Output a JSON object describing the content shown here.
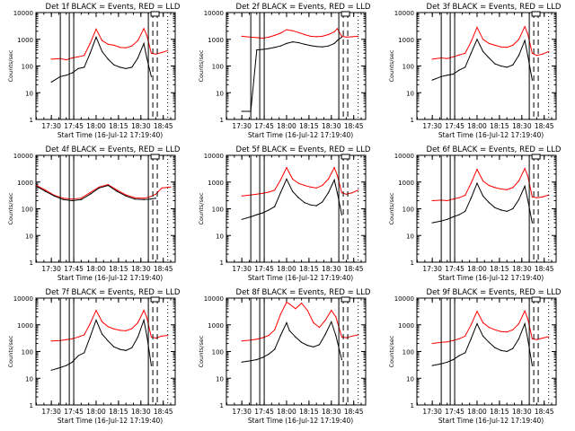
{
  "chart_data": {
    "type": "line",
    "yscale": "log",
    "ylim": [
      1,
      10000
    ],
    "ylabel": "Counts/sec",
    "xlabel": "Start Time (16-Jul-12 17:19:40)",
    "x_tick_labels": [
      "17:30",
      "17:45",
      "18:00",
      "18:15",
      "18:30",
      "18:45"
    ],
    "y_tick_labels": [
      "1",
      "10",
      "100",
      "1000",
      "10000"
    ],
    "y_tick_values": [
      1,
      10,
      100,
      1000,
      10000
    ],
    "colors": {
      "events": "#000000",
      "lld": "#ff0000"
    },
    "panels": [
      {
        "title": "Det 1f BLACK = Events, RED = LLD",
        "x": [
          "17:30",
          "17:36",
          "17:40",
          "17:44",
          "17:48",
          "17:52",
          "17:56",
          "18:00",
          "18:04",
          "18:08",
          "18:12",
          "18:16",
          "18:20",
          "18:24",
          "18:28",
          "18:32",
          "18:34",
          "18:37",
          "18:40",
          "18:44",
          "18:48"
        ],
        "series": [
          {
            "name": "BLACK = Events",
            "values": [
              25,
              40,
              45,
              55,
              80,
              90,
              300,
              1200,
              350,
              180,
              110,
              90,
              80,
              90,
              200,
              700,
              200,
              40,
              null,
              null,
              null
            ]
          },
          {
            "name": "RED = LLD",
            "values": [
              180,
              190,
              170,
              200,
              220,
              250,
              700,
              2400,
              900,
              650,
              600,
              500,
              480,
              560,
              900,
              2500,
              1400,
              300,
              280,
              320,
              380
            ]
          }
        ]
      },
      {
        "title": "Det 2f BLACK = Events, RED = LLD",
        "x": [
          "17:30",
          "17:36",
          "17:40",
          "17:44",
          "17:48",
          "17:52",
          "17:56",
          "18:00",
          "18:04",
          "18:08",
          "18:12",
          "18:16",
          "18:20",
          "18:24",
          "18:28",
          "18:32",
          "18:34",
          "18:37",
          "18:40",
          "18:44",
          "18:48"
        ],
        "series": [
          {
            "name": "BLACK = Events",
            "values": [
              2,
              2,
              400,
              420,
              450,
              500,
              560,
              700,
              800,
              750,
              650,
              580,
              540,
              520,
              560,
              700,
              900,
              1200,
              null,
              null,
              null
            ]
          },
          {
            "name": "RED = LLD",
            "values": [
              1300,
              1200,
              1150,
              1100,
              1200,
              1400,
              1700,
              2300,
              2100,
              1800,
              1500,
              1300,
              1250,
              1300,
              1500,
              1900,
              2500,
              1300,
              1200,
              1250,
              1300
            ]
          }
        ]
      },
      {
        "title": "Det 3f BLACK = Events, RED = LLD",
        "x": [
          "17:30",
          "17:36",
          "17:40",
          "17:44",
          "17:48",
          "17:52",
          "17:56",
          "18:00",
          "18:04",
          "18:08",
          "18:12",
          "18:16",
          "18:20",
          "18:24",
          "18:28",
          "18:32",
          "18:34",
          "18:37",
          "18:40",
          "18:44",
          "18:48"
        ],
        "series": [
          {
            "name": "BLACK = Events",
            "values": [
              30,
              40,
              45,
              50,
              70,
              90,
              300,
              1000,
              350,
              200,
              120,
              100,
              90,
              110,
              250,
              900,
              250,
              30,
              null,
              null,
              null
            ]
          },
          {
            "name": "RED = LLD",
            "values": [
              180,
              200,
              190,
              220,
              260,
              300,
              800,
              2800,
              1000,
              700,
              600,
              520,
              500,
              600,
              1000,
              3000,
              1600,
              300,
              250,
              280,
              350
            ]
          }
        ]
      },
      {
        "title": "Det 4f BLACK = Events, RED = LLD",
        "x": [
          "17:20",
          "17:26",
          "17:32",
          "17:38",
          "17:44",
          "17:50",
          "17:56",
          "18:02",
          "18:08",
          "18:14",
          "18:20",
          "18:26",
          "18:32",
          "18:36",
          "18:40",
          "18:44",
          "18:50"
        ],
        "series": [
          {
            "name": "BLACK = Events",
            "values": [
              700,
              450,
              300,
              220,
              200,
              220,
              350,
              600,
              750,
              450,
              300,
              230,
              220,
              230,
              250,
              null,
              null
            ]
          },
          {
            "name": "RED = LLD",
            "values": [
              750,
              500,
              320,
              250,
              230,
              250,
              400,
              650,
              800,
              500,
              330,
              260,
              250,
              280,
              350,
              600,
              650
            ]
          }
        ]
      },
      {
        "title": "Det 5f BLACK = Events, RED = LLD",
        "x": [
          "17:30",
          "17:36",
          "17:40",
          "17:44",
          "17:48",
          "17:52",
          "17:56",
          "18:00",
          "18:04",
          "18:08",
          "18:12",
          "18:16",
          "18:20",
          "18:24",
          "18:28",
          "18:32",
          "18:34",
          "18:37",
          "18:40",
          "18:44",
          "18:48"
        ],
        "series": [
          {
            "name": "BLACK = Events",
            "values": [
              40,
              50,
              60,
              70,
              90,
              120,
              400,
              1300,
              450,
              260,
              170,
              140,
              130,
              180,
              400,
              1200,
              400,
              60,
              null,
              null,
              null
            ]
          },
          {
            "name": "RED = LLD",
            "values": [
              300,
              330,
              350,
              380,
              420,
              500,
              1200,
              3500,
              1300,
              900,
              750,
              650,
              600,
              750,
              1300,
              3500,
              1800,
              400,
              350,
              400,
              500
            ]
          }
        ]
      },
      {
        "title": "Det 6f BLACK = Events, RED = LLD",
        "x": [
          "17:30",
          "17:36",
          "17:40",
          "17:44",
          "17:48",
          "17:52",
          "17:56",
          "18:00",
          "18:04",
          "18:08",
          "18:12",
          "18:16",
          "18:20",
          "18:24",
          "18:28",
          "18:32",
          "18:34",
          "18:37",
          "18:40",
          "18:44",
          "18:48"
        ],
        "series": [
          {
            "name": "BLACK = Events",
            "values": [
              30,
              35,
              40,
              50,
              60,
              80,
              250,
              900,
              300,
              170,
              110,
              90,
              80,
              100,
              220,
              700,
              220,
              30,
              null,
              null,
              null
            ]
          },
          {
            "name": "RED = LLD",
            "values": [
              200,
              210,
              200,
              230,
              260,
              320,
              900,
              3000,
              1100,
              750,
              620,
              550,
              520,
              620,
              1100,
              3200,
              1700,
              280,
              260,
              280,
              330
            ]
          }
        ]
      },
      {
        "title": "Det 7f BLACK = Events, RED = LLD",
        "x": [
          "17:30",
          "17:36",
          "17:40",
          "17:44",
          "17:48",
          "17:52",
          "17:56",
          "18:00",
          "18:04",
          "18:08",
          "18:12",
          "18:16",
          "18:20",
          "18:24",
          "18:28",
          "18:32",
          "18:34",
          "18:37",
          "18:40",
          "18:44",
          "18:48"
        ],
        "series": [
          {
            "name": "BLACK = Events",
            "values": [
              20,
              25,
              30,
              40,
              70,
              90,
              350,
              1500,
              450,
              250,
              150,
              120,
              110,
              140,
              350,
              1500,
              400,
              30,
              null,
              null,
              null
            ]
          },
          {
            "name": "RED = LLD",
            "values": [
              250,
              260,
              280,
              300,
              350,
              420,
              1100,
              3500,
              1300,
              850,
              700,
              620,
              600,
              720,
              1200,
              3500,
              1900,
              350,
              320,
              380,
              400
            ]
          }
        ]
      },
      {
        "title": "Det 8f BLACK = Events, RED = LLD",
        "x": [
          "17:30",
          "17:36",
          "17:40",
          "17:44",
          "17:48",
          "17:52",
          "17:56",
          "18:00",
          "18:02",
          "18:06",
          "18:10",
          "18:14",
          "18:18",
          "18:22",
          "18:26",
          "18:30",
          "18:33",
          "18:37",
          "18:40",
          "18:44",
          "18:48"
        ],
        "series": [
          {
            "name": "BLACK = Events",
            "values": [
              40,
              45,
              50,
              60,
              80,
              120,
              400,
              1200,
              600,
              350,
              220,
              170,
              150,
              180,
              450,
              1300,
              400,
              50,
              null,
              null,
              null
            ]
          },
          {
            "name": "RED = LLD",
            "values": [
              250,
              270,
              290,
              330,
              400,
              650,
              2500,
              7000,
              6000,
              4000,
              6500,
              3500,
              1200,
              800,
              1500,
              3500,
              2000,
              350,
              330,
              380,
              420
            ]
          }
        ]
      },
      {
        "title": "Det 9f BLACK = Events, RED = LLD",
        "x": [
          "17:30",
          "17:36",
          "17:40",
          "17:44",
          "17:48",
          "17:52",
          "17:56",
          "18:00",
          "18:04",
          "18:08",
          "18:12",
          "18:16",
          "18:20",
          "18:24",
          "18:28",
          "18:32",
          "18:34",
          "18:37",
          "18:40",
          "18:44",
          "18:48"
        ],
        "series": [
          {
            "name": "BLACK = Events",
            "values": [
              30,
              35,
              40,
              50,
              70,
              90,
              300,
              1100,
              380,
              220,
              140,
              110,
              100,
              130,
              300,
              1100,
              300,
              30,
              null,
              null,
              null
            ]
          },
          {
            "name": "RED = LLD",
            "values": [
              200,
              220,
              230,
              260,
              300,
              380,
              1000,
              3200,
              1200,
              800,
              650,
              560,
              540,
              650,
              1100,
              3300,
              1700,
              300,
              280,
              320,
              360
            ]
          }
        ]
      }
    ],
    "markers": {
      "solid": [
        "17:36",
        "17:42",
        "17:45",
        "18:35"
      ],
      "dashed": [
        "18:38",
        "18:41"
      ],
      "dotted": [
        "18:48"
      ]
    }
  }
}
